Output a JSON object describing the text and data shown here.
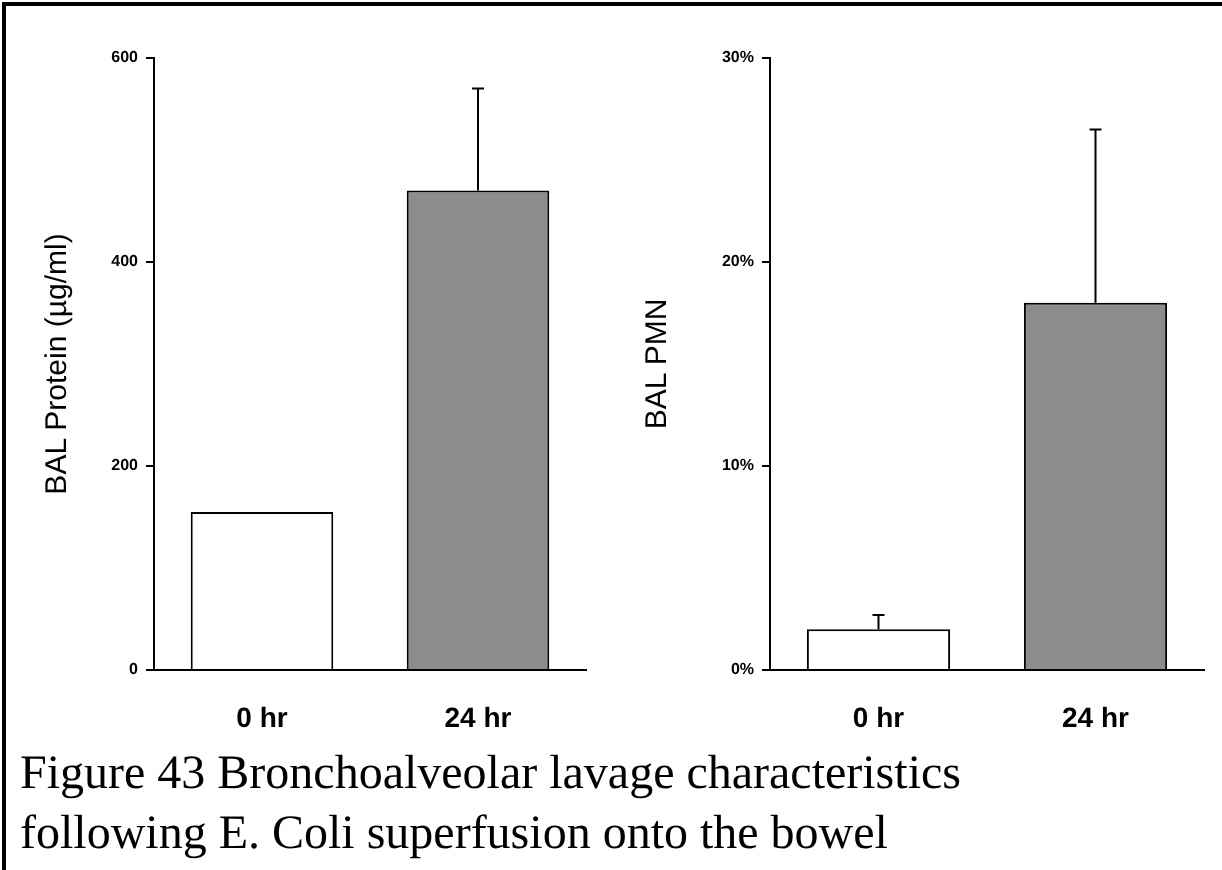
{
  "chart_data": [
    {
      "type": "bar",
      "ylabel": "BAL Protein (µg/ml)",
      "categories": [
        "0 hr",
        "24 hr"
      ],
      "values": [
        155,
        470
      ],
      "colors": [
        "#ffffff",
        "#8c8c8c"
      ],
      "errors": [
        null,
        [
          470,
          570
        ]
      ],
      "ylim": [
        0,
        600
      ],
      "yticks": [
        0,
        200,
        400,
        600
      ],
      "annotations": [
        "Figure 43 Bronchoalveolar lavage characteristics following E. Coli superfusion onto the bowel"
      ]
    },
    {
      "type": "bar",
      "ylabel": "BAL PMN",
      "categories": [
        "0 hr",
        "24 hr"
      ],
      "values": [
        2.0,
        18.0
      ],
      "colors": [
        "#ffffff",
        "#8c8c8c"
      ],
      "errors": [
        [
          2.0,
          2.7
        ],
        [
          18.0,
          26.5
        ]
      ],
      "ylim": [
        0,
        30
      ],
      "yticks": [
        {
          "value": 0,
          "label": "0%"
        },
        {
          "value": 10,
          "label": "10%"
        },
        {
          "value": 20,
          "label": "20%"
        },
        {
          "value": 30,
          "label": "30%"
        }
      ]
    }
  ]
}
